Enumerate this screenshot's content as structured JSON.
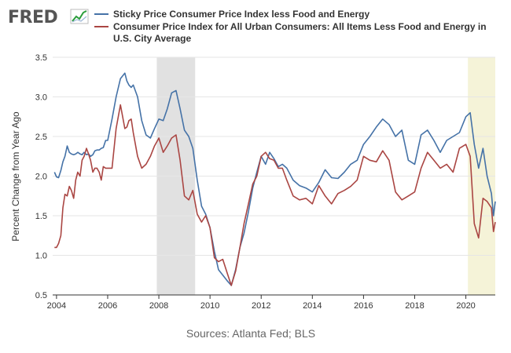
{
  "logo": {
    "text": "FRED",
    "icon": "fred-chart-icon"
  },
  "chart_data": {
    "type": "line",
    "xlim": [
      2003.85,
      2021.15
    ],
    "ylim": [
      0.5,
      3.5
    ],
    "yticks": [
      "0.5",
      "1.0",
      "1.5",
      "2.0",
      "2.5",
      "3.0",
      "3.5"
    ],
    "xticks": [
      "2004",
      "2006",
      "2008",
      "2010",
      "2012",
      "2014",
      "2016",
      "2018",
      "2020"
    ],
    "ylabel": "Percent Change from Year Ago",
    "source": "Sources: Atlanta Fed; BLS",
    "grid": true,
    "legend_position": "top",
    "recessions": [
      {
        "start": 2007.92,
        "end": 2009.42,
        "color": "#e1e1e1"
      },
      {
        "start": 2020.08,
        "end": 2021.15,
        "color": "#f5f3d8"
      }
    ],
    "series": [
      {
        "name": "Sticky Price Consumer Price Index less Food and Energy",
        "color": "#4572a7",
        "x": [
          2003.92,
          2004.0,
          2004.08,
          2004.17,
          2004.25,
          2004.33,
          2004.42,
          2004.5,
          2004.58,
          2004.67,
          2004.75,
          2004.83,
          2004.92,
          2005.0,
          2005.08,
          2005.17,
          2005.25,
          2005.33,
          2005.42,
          2005.5,
          2005.58,
          2005.67,
          2005.75,
          2005.83,
          2005.92,
          2006.0,
          2006.17,
          2006.33,
          2006.5,
          2006.67,
          2006.75,
          2006.83,
          2006.92,
          2007.0,
          2007.17,
          2007.33,
          2007.5,
          2007.67,
          2007.83,
          2008.0,
          2008.17,
          2008.33,
          2008.5,
          2008.67,
          2008.83,
          2009.0,
          2009.17,
          2009.33,
          2009.5,
          2009.67,
          2009.83,
          2010.0,
          2010.17,
          2010.33,
          2010.5,
          2010.67,
          2010.83,
          2011.0,
          2011.17,
          2011.33,
          2011.5,
          2011.67,
          2011.83,
          2012.0,
          2012.17,
          2012.33,
          2012.5,
          2012.67,
          2012.83,
          2013.0,
          2013.25,
          2013.5,
          2013.75,
          2014.0,
          2014.25,
          2014.5,
          2014.75,
          2015.0,
          2015.25,
          2015.5,
          2015.75,
          2016.0,
          2016.25,
          2016.5,
          2016.75,
          2017.0,
          2017.25,
          2017.5,
          2017.75,
          2018.0,
          2018.25,
          2018.5,
          2018.75,
          2019.0,
          2019.25,
          2019.5,
          2019.75,
          2020.0,
          2020.17,
          2020.33,
          2020.5,
          2020.67,
          2020.83,
          2021.0,
          2021.08,
          2021.15
        ],
        "y": [
          2.05,
          1.99,
          1.98,
          2.07,
          2.18,
          2.25,
          2.38,
          2.3,
          2.28,
          2.27,
          2.28,
          2.3,
          2.28,
          2.27,
          2.3,
          2.27,
          2.28,
          2.25,
          2.27,
          2.32,
          2.33,
          2.33,
          2.35,
          2.36,
          2.45,
          2.45,
          2.72,
          3.0,
          3.23,
          3.3,
          3.2,
          3.15,
          3.12,
          3.15,
          3.0,
          2.7,
          2.52,
          2.48,
          2.6,
          2.72,
          2.7,
          2.85,
          3.05,
          3.08,
          2.85,
          2.58,
          2.5,
          2.35,
          1.95,
          1.62,
          1.52,
          1.35,
          1.05,
          0.82,
          0.75,
          0.68,
          0.62,
          0.82,
          1.1,
          1.28,
          1.55,
          1.85,
          2.05,
          2.25,
          2.15,
          2.3,
          2.22,
          2.12,
          2.15,
          2.1,
          1.95,
          1.88,
          1.85,
          1.8,
          1.92,
          2.08,
          1.98,
          1.97,
          2.05,
          2.15,
          2.2,
          2.4,
          2.5,
          2.62,
          2.72,
          2.65,
          2.5,
          2.58,
          2.2,
          2.15,
          2.52,
          2.58,
          2.45,
          2.3,
          2.45,
          2.5,
          2.55,
          2.75,
          2.8,
          2.4,
          2.1,
          2.35,
          2.0,
          1.78,
          1.5,
          1.68
        ]
      },
      {
        "name": "Consumer Price Index for All Urban Consumers: All Items Less Food and Energy in U.S. City Average",
        "color": "#aa4643",
        "x": [
          2003.92,
          2004.0,
          2004.08,
          2004.17,
          2004.25,
          2004.33,
          2004.42,
          2004.5,
          2004.58,
          2004.67,
          2004.75,
          2004.83,
          2004.92,
          2005.0,
          2005.08,
          2005.17,
          2005.25,
          2005.33,
          2005.42,
          2005.5,
          2005.58,
          2005.67,
          2005.75,
          2005.83,
          2005.92,
          2006.0,
          2006.17,
          2006.33,
          2006.5,
          2006.67,
          2006.75,
          2006.83,
          2006.92,
          2007.0,
          2007.17,
          2007.33,
          2007.5,
          2007.67,
          2007.83,
          2008.0,
          2008.17,
          2008.33,
          2008.5,
          2008.67,
          2008.83,
          2009.0,
          2009.17,
          2009.33,
          2009.5,
          2009.67,
          2009.83,
          2010.0,
          2010.17,
          2010.33,
          2010.5,
          2010.67,
          2010.83,
          2011.0,
          2011.17,
          2011.33,
          2011.5,
          2011.67,
          2011.83,
          2012.0,
          2012.17,
          2012.33,
          2012.5,
          2012.67,
          2012.83,
          2013.0,
          2013.25,
          2013.5,
          2013.75,
          2014.0,
          2014.25,
          2014.5,
          2014.75,
          2015.0,
          2015.25,
          2015.5,
          2015.75,
          2016.0,
          2016.25,
          2016.5,
          2016.75,
          2017.0,
          2017.25,
          2017.5,
          2017.75,
          2018.0,
          2018.25,
          2018.5,
          2018.75,
          2019.0,
          2019.25,
          2019.5,
          2019.75,
          2020.0,
          2020.17,
          2020.33,
          2020.5,
          2020.67,
          2020.83,
          2021.0,
          2021.08,
          2021.15
        ],
        "y": [
          1.1,
          1.1,
          1.15,
          1.25,
          1.6,
          1.77,
          1.75,
          1.87,
          1.82,
          1.72,
          1.95,
          2.05,
          2.0,
          2.2,
          2.25,
          2.35,
          2.28,
          2.2,
          2.05,
          2.1,
          2.1,
          2.05,
          1.95,
          2.12,
          2.1,
          2.1,
          2.1,
          2.6,
          2.9,
          2.6,
          2.62,
          2.7,
          2.72,
          2.55,
          2.25,
          2.1,
          2.15,
          2.25,
          2.38,
          2.48,
          2.3,
          2.38,
          2.48,
          2.52,
          2.2,
          1.75,
          1.7,
          1.82,
          1.52,
          1.42,
          1.5,
          1.35,
          0.97,
          0.92,
          0.95,
          0.78,
          0.62,
          0.8,
          1.1,
          1.4,
          1.65,
          1.9,
          2.0,
          2.25,
          2.3,
          2.22,
          2.2,
          2.1,
          2.1,
          1.95,
          1.75,
          1.7,
          1.72,
          1.65,
          1.88,
          1.75,
          1.65,
          1.78,
          1.82,
          1.87,
          1.95,
          2.25,
          2.2,
          2.18,
          2.32,
          2.2,
          1.8,
          1.7,
          1.75,
          1.8,
          2.1,
          2.3,
          2.2,
          2.1,
          2.15,
          2.05,
          2.35,
          2.4,
          2.25,
          1.4,
          1.22,
          1.72,
          1.68,
          1.6,
          1.3,
          1.42
        ]
      }
    ]
  }
}
